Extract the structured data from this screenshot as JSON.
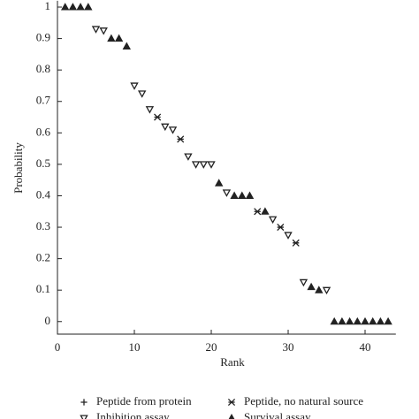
{
  "chart_data": {
    "type": "scatter",
    "x_label": "Rank",
    "y_label": "Probability",
    "xlim": [
      0,
      44
    ],
    "xticks": [
      0,
      10,
      20,
      30,
      40
    ],
    "ylim": [
      -0.04,
      1.02
    ],
    "yticks": [
      0,
      0.1,
      0.2,
      0.3,
      0.4,
      0.5,
      0.6,
      0.7,
      0.8,
      0.9,
      1
    ],
    "series": [
      {
        "name": "Peptide from protein",
        "marker": "plus",
        "color": "#222222",
        "x": [],
        "values": []
      },
      {
        "name": "Peptide, no natural source",
        "marker": "x",
        "color": "#222222",
        "x": [
          13,
          16,
          26,
          29,
          31
        ],
        "values": [
          0.65,
          0.58,
          0.35,
          0.3,
          0.25
        ]
      },
      {
        "name": "Inhibition assay",
        "marker": "triangle-down",
        "color": "#222222",
        "x": [
          5,
          6,
          10,
          11,
          12,
          14,
          15,
          17,
          18,
          19,
          20,
          22,
          28,
          30,
          32,
          35
        ],
        "values": [
          0.93,
          0.925,
          0.75,
          0.725,
          0.675,
          0.62,
          0.61,
          0.525,
          0.5,
          0.5,
          0.5,
          0.41,
          0.325,
          0.275,
          0.125,
          0.1
        ]
      },
      {
        "name": "Survival assay",
        "marker": "triangle-up",
        "color": "#222222",
        "x": [
          1,
          2,
          3,
          4,
          7,
          8,
          9,
          21,
          23,
          24,
          25,
          27,
          33,
          34,
          36,
          37,
          38,
          39,
          40,
          41,
          42,
          43
        ],
        "values": [
          1,
          1,
          1,
          1,
          0.9,
          0.9,
          0.875,
          0.44,
          0.4,
          0.4,
          0.4,
          0.35,
          0.11,
          0.1,
          0,
          0,
          0,
          0,
          0,
          0,
          0,
          0
        ]
      }
    ]
  }
}
